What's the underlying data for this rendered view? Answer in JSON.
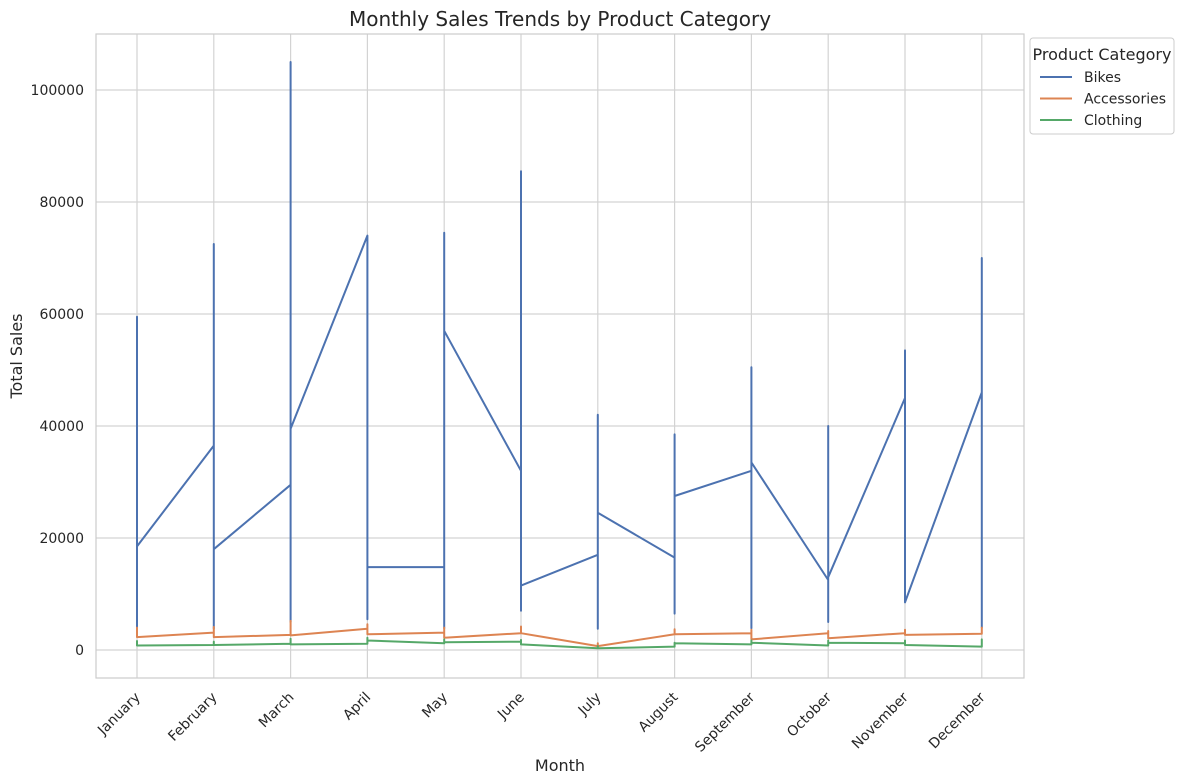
{
  "chart_data": {
    "type": "line",
    "title": "Monthly Sales Trends by Product Category",
    "xlabel": "Month",
    "ylabel": "Total Sales",
    "ylim": [
      -5000,
      110000
    ],
    "yticks": [
      0,
      20000,
      40000,
      60000,
      80000,
      100000
    ],
    "categories": [
      "January",
      "February",
      "March",
      "April",
      "May",
      "June",
      "July",
      "August",
      "September",
      "October",
      "November",
      "December"
    ],
    "grid": true,
    "legend": {
      "title": "Product Category",
      "placement": "upper-right-outside"
    },
    "series": [
      {
        "name": "Bikes",
        "color": "#4c72b0",
        "path": [
          {
            "m": 0,
            "y": 4000
          },
          {
            "m": 0,
            "y": 59500
          },
          {
            "m": 0,
            "y": 18500
          },
          {
            "m": 1,
            "y": 36500
          },
          {
            "m": 1,
            "y": 72500
          },
          {
            "m": 1,
            "y": 3800
          },
          {
            "m": 1,
            "y": 18000
          },
          {
            "m": 2,
            "y": 29500
          },
          {
            "m": 2,
            "y": 105000
          },
          {
            "m": 2,
            "y": 5000
          },
          {
            "m": 2,
            "y": 39500
          },
          {
            "m": 3,
            "y": 74000
          },
          {
            "m": 3,
            "y": 5500
          },
          {
            "m": 3,
            "y": 14800
          },
          {
            "m": 4,
            "y": 14800
          },
          {
            "m": 4,
            "y": 74500
          },
          {
            "m": 4,
            "y": 3900
          },
          {
            "m": 4,
            "y": 57000
          },
          {
            "m": 5,
            "y": 32000
          },
          {
            "m": 5,
            "y": 85500
          },
          {
            "m": 5,
            "y": 7000
          },
          {
            "m": 5,
            "y": 11500
          },
          {
            "m": 6,
            "y": 17000
          },
          {
            "m": 6,
            "y": 42000
          },
          {
            "m": 6,
            "y": 3800
          },
          {
            "m": 6,
            "y": 24500
          },
          {
            "m": 7,
            "y": 16500
          },
          {
            "m": 7,
            "y": 6500
          },
          {
            "m": 7,
            "y": 38500
          },
          {
            "m": 7,
            "y": 27500
          },
          {
            "m": 8,
            "y": 32000
          },
          {
            "m": 8,
            "y": 50500
          },
          {
            "m": 8,
            "y": 3900
          },
          {
            "m": 8,
            "y": 33500
          },
          {
            "m": 9,
            "y": 12500
          },
          {
            "m": 9,
            "y": 5000
          },
          {
            "m": 9,
            "y": 40000
          },
          {
            "m": 9,
            "y": 13000
          },
          {
            "m": 10,
            "y": 45000
          },
          {
            "m": 10,
            "y": 53500
          },
          {
            "m": 10,
            "y": 8500
          },
          {
            "m": 11,
            "y": 46000
          },
          {
            "m": 11,
            "y": 70000
          },
          {
            "m": 11,
            "y": 4000
          }
        ]
      },
      {
        "name": "Accessories",
        "color": "#dd8452",
        "path": [
          {
            "m": 0,
            "y": 4000
          },
          {
            "m": 0,
            "y": 2300
          },
          {
            "m": 1,
            "y": 3100
          },
          {
            "m": 1,
            "y": 4100
          },
          {
            "m": 1,
            "y": 2300
          },
          {
            "m": 2,
            "y": 2700
          },
          {
            "m": 2,
            "y": 5200
          },
          {
            "m": 2,
            "y": 2600
          },
          {
            "m": 3,
            "y": 3800
          },
          {
            "m": 3,
            "y": 4600
          },
          {
            "m": 3,
            "y": 2800
          },
          {
            "m": 4,
            "y": 3100
          },
          {
            "m": 4,
            "y": 4000
          },
          {
            "m": 4,
            "y": 2200
          },
          {
            "m": 5,
            "y": 3000
          },
          {
            "m": 5,
            "y": 4200
          },
          {
            "m": 5,
            "y": 3000
          },
          {
            "m": 6,
            "y": 700
          },
          {
            "m": 6,
            "y": 1200
          },
          {
            "m": 6,
            "y": 700
          },
          {
            "m": 7,
            "y": 2800
          },
          {
            "m": 7,
            "y": 3700
          },
          {
            "m": 7,
            "y": 2800
          },
          {
            "m": 8,
            "y": 3000
          },
          {
            "m": 8,
            "y": 3600
          },
          {
            "m": 8,
            "y": 1900
          },
          {
            "m": 9,
            "y": 3000
          },
          {
            "m": 9,
            "y": 3400
          },
          {
            "m": 9,
            "y": 2100
          },
          {
            "m": 10,
            "y": 3000
          },
          {
            "m": 10,
            "y": 3600
          },
          {
            "m": 10,
            "y": 2700
          },
          {
            "m": 11,
            "y": 2900
          },
          {
            "m": 11,
            "y": 4000
          },
          {
            "m": 11,
            "y": 2900
          }
        ]
      },
      {
        "name": "Clothing",
        "color": "#55a868",
        "path": [
          {
            "m": 0,
            "y": 1600
          },
          {
            "m": 0,
            "y": 800
          },
          {
            "m": 1,
            "y": 900
          },
          {
            "m": 1,
            "y": 1500
          },
          {
            "m": 1,
            "y": 900
          },
          {
            "m": 2,
            "y": 1100
          },
          {
            "m": 2,
            "y": 2000
          },
          {
            "m": 2,
            "y": 1000
          },
          {
            "m": 3,
            "y": 1100
          },
          {
            "m": 3,
            "y": 2200
          },
          {
            "m": 3,
            "y": 1700
          },
          {
            "m": 4,
            "y": 1200
          },
          {
            "m": 4,
            "y": 1900
          },
          {
            "m": 4,
            "y": 1400
          },
          {
            "m": 5,
            "y": 1500
          },
          {
            "m": 5,
            "y": 1800
          },
          {
            "m": 5,
            "y": 1000
          },
          {
            "m": 6,
            "y": 300
          },
          {
            "m": 6,
            "y": 700
          },
          {
            "m": 6,
            "y": 300
          },
          {
            "m": 7,
            "y": 600
          },
          {
            "m": 7,
            "y": 1300
          },
          {
            "m": 7,
            "y": 1200
          },
          {
            "m": 8,
            "y": 1000
          },
          {
            "m": 8,
            "y": 1700
          },
          {
            "m": 8,
            "y": 1300
          },
          {
            "m": 9,
            "y": 800
          },
          {
            "m": 9,
            "y": 1700
          },
          {
            "m": 9,
            "y": 1300
          },
          {
            "m": 10,
            "y": 1200
          },
          {
            "m": 10,
            "y": 1700
          },
          {
            "m": 10,
            "y": 900
          },
          {
            "m": 11,
            "y": 600
          },
          {
            "m": 11,
            "y": 1900
          },
          {
            "m": 11,
            "y": 600
          }
        ]
      }
    ]
  }
}
